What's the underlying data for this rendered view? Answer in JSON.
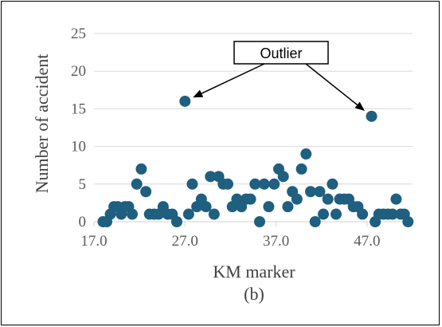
{
  "chart_data": {
    "type": "scatter",
    "title": "",
    "xlabel": "KM marker",
    "ylabel": "Number of accident",
    "caption": "(b)",
    "xlim": [
      17.0,
      52.0
    ],
    "ylim": [
      0,
      25
    ],
    "xticks": [
      17.0,
      27.0,
      37.0,
      47.0
    ],
    "yticks": [
      0,
      5,
      10,
      15,
      20,
      25
    ],
    "xtick_format": "0.0",
    "grid": "horizontal",
    "marker_color": "#1F5F7F",
    "gridline_color": "#D9D9D9",
    "annotation": {
      "text": "Outlier",
      "targets": [
        [
          27.0,
          16
        ],
        [
          47.5,
          14
        ]
      ]
    },
    "points": [
      [
        18.0,
        0
      ],
      [
        18.4,
        0
      ],
      [
        18.8,
        1
      ],
      [
        19.2,
        2
      ],
      [
        19.6,
        2
      ],
      [
        20.0,
        1
      ],
      [
        20.4,
        2
      ],
      [
        20.8,
        2
      ],
      [
        21.2,
        1
      ],
      [
        21.7,
        5
      ],
      [
        22.2,
        7
      ],
      [
        22.7,
        4
      ],
      [
        23.1,
        1
      ],
      [
        23.6,
        1
      ],
      [
        24.1,
        1
      ],
      [
        24.6,
        2
      ],
      [
        25.1,
        1
      ],
      [
        25.6,
        1
      ],
      [
        26.1,
        0
      ],
      [
        27.0,
        16
      ],
      [
        27.4,
        1
      ],
      [
        27.8,
        5
      ],
      [
        28.3,
        2
      ],
      [
        28.8,
        3
      ],
      [
        29.3,
        2
      ],
      [
        29.8,
        6
      ],
      [
        30.2,
        1
      ],
      [
        30.7,
        6
      ],
      [
        31.2,
        5
      ],
      [
        31.7,
        5
      ],
      [
        32.2,
        2
      ],
      [
        32.7,
        3
      ],
      [
        33.2,
        2
      ],
      [
        33.7,
        3
      ],
      [
        34.2,
        3
      ],
      [
        34.7,
        5
      ],
      [
        35.2,
        0
      ],
      [
        35.7,
        5
      ],
      [
        36.2,
        2
      ],
      [
        36.8,
        5
      ],
      [
        37.3,
        7
      ],
      [
        37.8,
        6
      ],
      [
        38.3,
        2
      ],
      [
        38.8,
        4
      ],
      [
        39.3,
        3
      ],
      [
        39.8,
        7
      ],
      [
        40.3,
        9
      ],
      [
        40.8,
        4
      ],
      [
        41.3,
        0
      ],
      [
        41.8,
        4
      ],
      [
        42.2,
        1
      ],
      [
        42.7,
        3
      ],
      [
        43.2,
        5
      ],
      [
        43.6,
        1
      ],
      [
        44.0,
        3
      ],
      [
        44.5,
        3
      ],
      [
        45.0,
        3
      ],
      [
        45.5,
        2
      ],
      [
        46.0,
        2
      ],
      [
        46.5,
        1
      ],
      [
        47.5,
        14
      ],
      [
        47.9,
        0
      ],
      [
        48.3,
        1
      ],
      [
        48.8,
        1
      ],
      [
        49.3,
        1
      ],
      [
        49.8,
        1
      ],
      [
        50.2,
        3
      ],
      [
        50.7,
        1
      ],
      [
        51.1,
        1
      ],
      [
        51.5,
        0
      ]
    ]
  }
}
